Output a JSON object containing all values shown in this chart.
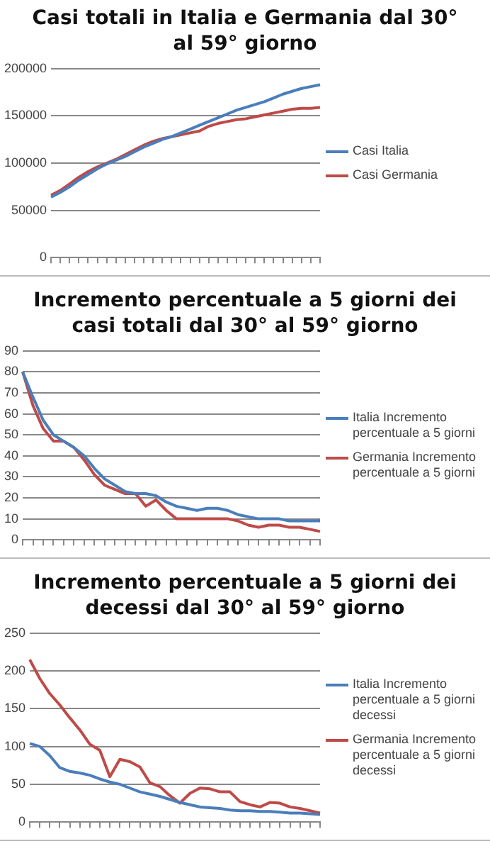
{
  "chart_data": [
    {
      "type": "line",
      "title": "Casi totali in Italia e Germania dal 30° al 59° giorno",
      "categories": [
        null,
        null,
        null,
        null,
        null,
        null,
        null,
        null,
        null,
        null,
        null,
        null,
        null,
        null,
        null,
        null,
        null,
        null,
        null,
        null,
        null,
        null,
        null,
        null,
        null,
        null,
        null,
        null,
        null,
        null
      ],
      "series": [
        {
          "name": "Casi Italia",
          "color": "#4a7ebb",
          "values": [
            64000,
            69000,
            75000,
            82000,
            88000,
            94000,
            99000,
            103000,
            107000,
            112000,
            117000,
            121000,
            125000,
            128000,
            132000,
            136000,
            140000,
            144000,
            148000,
            152000,
            156000,
            159000,
            162000,
            165000,
            169000,
            173000,
            176000,
            179000,
            181000,
            183000
          ]
        },
        {
          "name": "Casi Germania",
          "color": "#be4b48",
          "values": [
            66000,
            71000,
            78000,
            85000,
            91000,
            96000,
            100000,
            104000,
            109000,
            114000,
            119000,
            123000,
            126000,
            128000,
            130000,
            132000,
            134000,
            139000,
            142000,
            144000,
            146000,
            147000,
            149000,
            151000,
            153000,
            155000,
            157000,
            158000,
            158000,
            159000
          ]
        }
      ],
      "ylim": [
        0,
        200000
      ],
      "yticks": [
        0,
        50000,
        100000,
        150000,
        200000
      ],
      "grid": "y",
      "legend": "right",
      "tick_labels": "y"
    },
    {
      "type": "line",
      "title": "Incremento percentuale a 5 giorni dei casi totali dal 30° al 59° giorno",
      "categories": [
        null,
        null,
        null,
        null,
        null,
        null,
        null,
        null,
        null,
        null,
        null,
        null,
        null,
        null,
        null,
        null,
        null,
        null,
        null,
        null,
        null,
        null,
        null,
        null,
        null,
        null,
        null,
        null,
        null,
        null
      ],
      "series": [
        {
          "name": "Italia Incremento percentuale a 5 giorni",
          "color": "#4a7ebb",
          "values": [
            80,
            68,
            57,
            50,
            47,
            44,
            40,
            34,
            29,
            26,
            23,
            22,
            22,
            21,
            18,
            16,
            15,
            14,
            15,
            15,
            14,
            12,
            11,
            10,
            10,
            10,
            9,
            9,
            9,
            9
          ]
        },
        {
          "name": "Germania Incremento percentuale a 5 giorni",
          "color": "#be4b48",
          "values": [
            80,
            64,
            53,
            47,
            47,
            44,
            38,
            31,
            26,
            24,
            22,
            22,
            16,
            19,
            14,
            10,
            10,
            10,
            10,
            10,
            10,
            9,
            7,
            6,
            7,
            7,
            6,
            6,
            5,
            4
          ]
        }
      ],
      "ylim": [
        0,
        90
      ],
      "yticks": [
        0,
        10,
        20,
        30,
        40,
        50,
        60,
        70,
        80,
        90
      ],
      "grid": "y",
      "legend": "right",
      "tick_labels": "y"
    },
    {
      "type": "line",
      "title": "Incremento percentuale a 5 giorni dei decessi dal 30° al 59° giorno",
      "categories": [
        null,
        null,
        null,
        null,
        null,
        null,
        null,
        null,
        null,
        null,
        null,
        null,
        null,
        null,
        null,
        null,
        null,
        null,
        null,
        null,
        null,
        null,
        null,
        null,
        null,
        null,
        null,
        null,
        null,
        null
      ],
      "series": [
        {
          "name": "Italia Incremento percentuale a 5 giorni decessi",
          "color": "#4a7ebb",
          "values": [
            104,
            100,
            88,
            72,
            67,
            65,
            62,
            57,
            53,
            50,
            45,
            40,
            37,
            34,
            30,
            26,
            23,
            20,
            19,
            18,
            16,
            15,
            15,
            14,
            14,
            13,
            12,
            12,
            11,
            10
          ]
        },
        {
          "name": "Germania Incremento percentuale a 5 giorni decessi",
          "color": "#be4b48",
          "values": [
            215,
            190,
            170,
            155,
            138,
            122,
            103,
            95,
            60,
            83,
            80,
            73,
            52,
            47,
            35,
            25,
            38,
            45,
            44,
            40,
            40,
            27,
            23,
            20,
            26,
            25,
            20,
            18,
            15,
            12
          ]
        }
      ],
      "ylim": [
        0,
        250
      ],
      "yticks": [
        0,
        50,
        100,
        150,
        200,
        250
      ],
      "grid": "y",
      "legend": "right",
      "tick_labels": "y"
    }
  ]
}
